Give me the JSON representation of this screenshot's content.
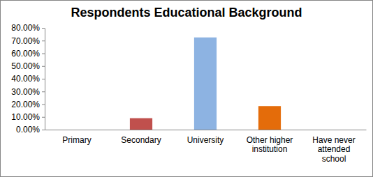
{
  "chart_data": {
    "type": "bar",
    "title": "Respondents Educational Background",
    "categories": [
      "Primary",
      "Secondary",
      "University",
      "Other higher institution",
      "Have never attended school"
    ],
    "values": [
      0,
      9,
      72.5,
      18.5,
      0
    ],
    "colors": [
      "#4f81bd",
      "#c0504d",
      "#8db3e2",
      "#e46c0a",
      "#9bbb59"
    ],
    "ylim": [
      0,
      80
    ],
    "yticks": [
      {
        "value": 0,
        "label": "0.00%"
      },
      {
        "value": 10,
        "label": "10.00%"
      },
      {
        "value": 20,
        "label": "20.00%"
      },
      {
        "value": 30,
        "label": "30.00%"
      },
      {
        "value": 40,
        "label": "40.00%"
      },
      {
        "value": 50,
        "label": "50.00%"
      },
      {
        "value": 60,
        "label": "60.00%"
      },
      {
        "value": 70,
        "label": "70.00%"
      },
      {
        "value": 80,
        "label": "80.00%"
      }
    ],
    "grid": false
  }
}
